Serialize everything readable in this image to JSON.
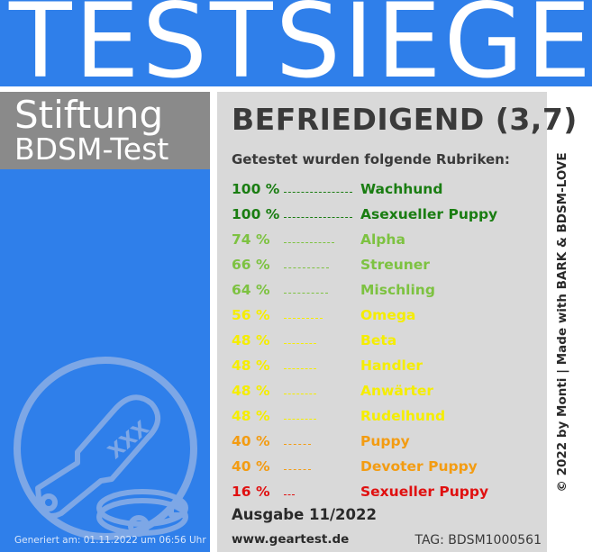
{
  "banner": {
    "title": "TESTSIEGER"
  },
  "organization": {
    "line1": "Stiftung",
    "line2": "BDSM-Test"
  },
  "rating": "BEFRIEDIGEND (3,7)",
  "subheading": "Getestet wurden folgende Rubriken:",
  "rubrics": [
    {
      "percent": "100 %",
      "category": "Wachhund",
      "value": 100,
      "color": "#1a7d12"
    },
    {
      "percent": "100 %",
      "category": "Asexueller Puppy",
      "value": 100,
      "color": "#1a7d12"
    },
    {
      "percent": "74 %",
      "category": "Alpha",
      "value": 74,
      "color": "#7dc241"
    },
    {
      "percent": "66 %",
      "category": "Streuner",
      "value": 66,
      "color": "#7dc241"
    },
    {
      "percent": "64 %",
      "category": "Mischling",
      "value": 64,
      "color": "#7dc241"
    },
    {
      "percent": "56 %",
      "category": "Omega",
      "value": 56,
      "color": "#f5ed00"
    },
    {
      "percent": "48 %",
      "category": "Beta",
      "value": 48,
      "color": "#f5ed00"
    },
    {
      "percent": "48 %",
      "category": "Handler",
      "value": 48,
      "color": "#f5ed00"
    },
    {
      "percent": "48 %",
      "category": "Anwärter",
      "value": 48,
      "color": "#f5ed00"
    },
    {
      "percent": "48 %",
      "category": "Rudelhund",
      "value": 48,
      "color": "#f5ed00"
    },
    {
      "percent": "40 %",
      "category": "Puppy",
      "value": 40,
      "color": "#f39c12"
    },
    {
      "percent": "40 %",
      "category": "Devoter Puppy",
      "value": 40,
      "color": "#f39c12"
    },
    {
      "percent": "16 %",
      "category": "Sexueller Puppy",
      "value": 16,
      "color": "#e01010"
    }
  ],
  "issue": "Ausgabe 11/2022",
  "website": "www.geartest.de",
  "tag": "TAG: BDSM1000561",
  "generated": "Generiert am: 01.11.2022 um 06:56 Uhr",
  "credit": "© 2022 by Monti | Made with BARK & BDSM-LOVE",
  "emblem": {
    "icons": [
      "paddle-icon",
      "collar-icon"
    ],
    "paddle_text": "XXX"
  },
  "colors": {
    "banner_blue": "#2f7fea",
    "org_gray": "#8a8a8a",
    "panel_gray": "#d9d9d9"
  }
}
